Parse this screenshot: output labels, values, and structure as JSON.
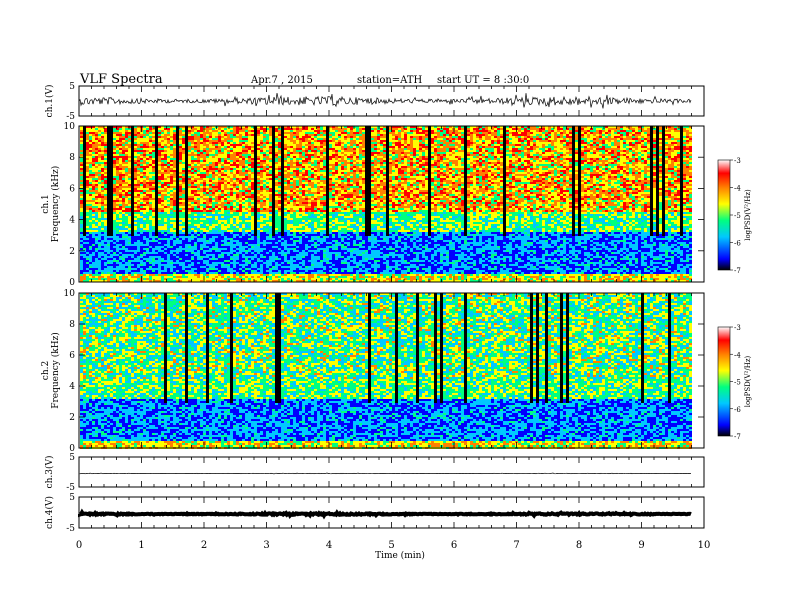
{
  "header": {
    "title": "VLF Spectra",
    "date": "Apr.7 , 2015",
    "station": "station=ATH",
    "start": "start UT = 8 :30:0"
  },
  "colors": {
    "spectrum": [
      "#000000",
      "#0000ff",
      "#00c8ff",
      "#00ff80",
      "#ffff00",
      "#ff8000",
      "#ff0000",
      "#ffffff"
    ],
    "trace": "#000000"
  },
  "chart_data": [
    {
      "type": "line",
      "panel": "ch1-waveform",
      "ylabel": "ch.1(V)",
      "ylim": [
        -5,
        5
      ],
      "yticks": [
        "5",
        "-5"
      ],
      "series_level": 0,
      "amplitude": 1.5
    },
    {
      "type": "heatmap",
      "panel": "ch1-spectrogram",
      "ylabel_channel": "ch.1",
      "ylabel": "Frequency (kHz)",
      "ylim": [
        0,
        10
      ],
      "yticks": [
        "0",
        "2",
        "4",
        "6",
        "8",
        "10"
      ],
      "xlim": [
        0,
        10
      ],
      "data_end_min": 9.8,
      "colorbar": {
        "label": "logPSD(V²/Hz)",
        "ticks": [
          "-3",
          "-4",
          "-5",
          "-6",
          "-7"
        ],
        "range": [
          -7,
          -3
        ]
      }
    },
    {
      "type": "heatmap",
      "panel": "ch2-spectrogram",
      "ylabel_channel": "ch.2",
      "ylabel": "Frequency (kHz)",
      "ylim": [
        0,
        10
      ],
      "yticks": [
        "0",
        "2",
        "4",
        "6",
        "8",
        "10"
      ],
      "xlim": [
        0,
        10
      ],
      "data_end_min": 9.8,
      "colorbar": {
        "label": "logPSD(V²/Hz)",
        "ticks": [
          "-3",
          "-4",
          "-5",
          "-6",
          "-7"
        ],
        "range": [
          -7,
          -3
        ]
      }
    },
    {
      "type": "line",
      "panel": "ch3-waveform",
      "ylabel": "ch.3(V)",
      "ylim": [
        -5,
        5
      ],
      "yticks": [
        "5",
        "-5"
      ],
      "series_level": -0.5,
      "amplitude": 0.1
    },
    {
      "type": "line",
      "panel": "ch4-waveform",
      "ylabel": "ch.4(V)",
      "ylim": [
        -5,
        5
      ],
      "yticks": [
        "5",
        "-5"
      ],
      "series_level": -0.5,
      "amplitude": 0.25
    }
  ],
  "xaxis": {
    "label": "Time (min)",
    "ticks": [
      "0",
      "1",
      "2",
      "3",
      "4",
      "5",
      "6",
      "7",
      "8",
      "9",
      "10"
    ],
    "xlim": [
      0,
      10
    ]
  }
}
